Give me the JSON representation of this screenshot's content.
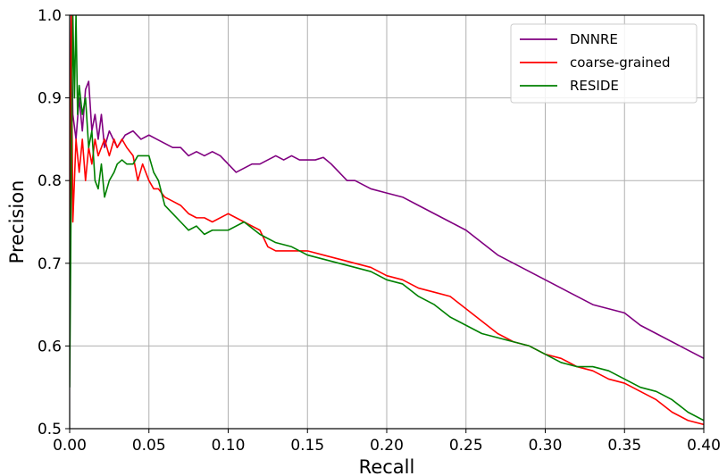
{
  "chart_data": {
    "type": "line",
    "title": "",
    "xlabel": "Recall",
    "ylabel": "Precision",
    "xlim": [
      0.0,
      0.4
    ],
    "ylim": [
      0.5,
      1.0
    ],
    "grid": true,
    "legend_position": "top-right",
    "x_ticks": [
      0.0,
      0.05,
      0.1,
      0.15,
      0.2,
      0.25,
      0.3,
      0.35,
      0.4
    ],
    "x_tick_labels": [
      "0.00",
      "0.05",
      "0.10",
      "0.15",
      "0.20",
      "0.25",
      "0.30",
      "0.35",
      "0.40"
    ],
    "y_ticks": [
      0.5,
      0.6,
      0.7,
      0.8,
      0.9,
      1.0
    ],
    "y_tick_labels": [
      "0.5",
      "0.6",
      "0.7",
      "0.8",
      "0.9",
      "1.0"
    ],
    "series": [
      {
        "name": "DNNRE",
        "color": "#800080",
        "x": [
          0.0,
          0.001,
          0.002,
          0.004,
          0.006,
          0.008,
          0.01,
          0.012,
          0.014,
          0.016,
          0.018,
          0.02,
          0.022,
          0.025,
          0.03,
          0.035,
          0.04,
          0.045,
          0.05,
          0.055,
          0.06,
          0.065,
          0.07,
          0.075,
          0.08,
          0.085,
          0.09,
          0.095,
          0.1,
          0.105,
          0.11,
          0.115,
          0.12,
          0.125,
          0.13,
          0.135,
          0.14,
          0.145,
          0.15,
          0.155,
          0.16,
          0.165,
          0.17,
          0.175,
          0.18,
          0.19,
          0.2,
          0.21,
          0.22,
          0.23,
          0.24,
          0.25,
          0.26,
          0.27,
          0.28,
          0.29,
          0.3,
          0.31,
          0.32,
          0.33,
          0.34,
          0.35,
          0.36,
          0.37,
          0.38,
          0.39,
          0.4
        ],
        "y": [
          0.8,
          1.0,
          0.88,
          0.85,
          0.9,
          0.86,
          0.91,
          0.92,
          0.86,
          0.88,
          0.85,
          0.88,
          0.84,
          0.86,
          0.84,
          0.855,
          0.86,
          0.85,
          0.855,
          0.85,
          0.845,
          0.84,
          0.84,
          0.83,
          0.835,
          0.83,
          0.835,
          0.83,
          0.82,
          0.81,
          0.815,
          0.82,
          0.82,
          0.825,
          0.83,
          0.825,
          0.83,
          0.825,
          0.825,
          0.825,
          0.828,
          0.82,
          0.81,
          0.8,
          0.8,
          0.79,
          0.785,
          0.78,
          0.77,
          0.76,
          0.75,
          0.74,
          0.725,
          0.71,
          0.7,
          0.69,
          0.68,
          0.67,
          0.66,
          0.65,
          0.645,
          0.64,
          0.625,
          0.615,
          0.605,
          0.595,
          0.585
        ]
      },
      {
        "name": "coarse-grained",
        "color": "#ff0000",
        "x": [
          0.0,
          0.001,
          0.002,
          0.003,
          0.004,
          0.006,
          0.008,
          0.01,
          0.012,
          0.014,
          0.016,
          0.018,
          0.02,
          0.022,
          0.025,
          0.028,
          0.03,
          0.033,
          0.036,
          0.04,
          0.043,
          0.046,
          0.05,
          0.053,
          0.056,
          0.06,
          0.065,
          0.07,
          0.075,
          0.08,
          0.085,
          0.09,
          0.1,
          0.11,
          0.12,
          0.125,
          0.13,
          0.14,
          0.15,
          0.16,
          0.17,
          0.18,
          0.19,
          0.2,
          0.21,
          0.22,
          0.23,
          0.24,
          0.25,
          0.26,
          0.27,
          0.28,
          0.29,
          0.3,
          0.31,
          0.32,
          0.33,
          0.34,
          0.35,
          0.36,
          0.37,
          0.38,
          0.39,
          0.4
        ],
        "y": [
          0.6,
          1.0,
          0.75,
          0.8,
          0.85,
          0.81,
          0.85,
          0.8,
          0.84,
          0.82,
          0.85,
          0.83,
          0.84,
          0.85,
          0.83,
          0.85,
          0.84,
          0.85,
          0.84,
          0.83,
          0.8,
          0.82,
          0.8,
          0.79,
          0.79,
          0.78,
          0.775,
          0.77,
          0.76,
          0.755,
          0.755,
          0.75,
          0.76,
          0.75,
          0.74,
          0.72,
          0.715,
          0.715,
          0.715,
          0.71,
          0.705,
          0.7,
          0.695,
          0.685,
          0.68,
          0.67,
          0.665,
          0.66,
          0.645,
          0.63,
          0.615,
          0.605,
          0.6,
          0.59,
          0.585,
          0.575,
          0.57,
          0.56,
          0.555,
          0.545,
          0.535,
          0.52,
          0.51,
          0.505
        ]
      },
      {
        "name": "RESIDE",
        "color": "#008000",
        "x": [
          0.0,
          0.001,
          0.002,
          0.003,
          0.004,
          0.005,
          0.006,
          0.008,
          0.01,
          0.012,
          0.014,
          0.016,
          0.018,
          0.02,
          0.022,
          0.025,
          0.028,
          0.03,
          0.033,
          0.036,
          0.04,
          0.043,
          0.046,
          0.05,
          0.053,
          0.056,
          0.06,
          0.065,
          0.07,
          0.075,
          0.08,
          0.085,
          0.09,
          0.1,
          0.11,
          0.12,
          0.13,
          0.14,
          0.15,
          0.16,
          0.17,
          0.18,
          0.19,
          0.2,
          0.21,
          0.22,
          0.23,
          0.24,
          0.25,
          0.26,
          0.27,
          0.28,
          0.29,
          0.3,
          0.31,
          0.32,
          0.33,
          0.34,
          0.35,
          0.36,
          0.37,
          0.38,
          0.39,
          0.4
        ],
        "y": [
          0.55,
          0.8,
          1.0,
          0.9,
          1.0,
          0.88,
          0.915,
          0.88,
          0.9,
          0.84,
          0.86,
          0.8,
          0.79,
          0.82,
          0.78,
          0.8,
          0.81,
          0.82,
          0.825,
          0.82,
          0.82,
          0.83,
          0.83,
          0.83,
          0.81,
          0.8,
          0.77,
          0.76,
          0.75,
          0.74,
          0.745,
          0.735,
          0.74,
          0.74,
          0.75,
          0.735,
          0.725,
          0.72,
          0.71,
          0.705,
          0.7,
          0.695,
          0.69,
          0.68,
          0.675,
          0.66,
          0.65,
          0.635,
          0.625,
          0.615,
          0.61,
          0.605,
          0.6,
          0.59,
          0.58,
          0.575,
          0.575,
          0.57,
          0.56,
          0.55,
          0.545,
          0.535,
          0.52,
          0.51
        ]
      }
    ]
  }
}
